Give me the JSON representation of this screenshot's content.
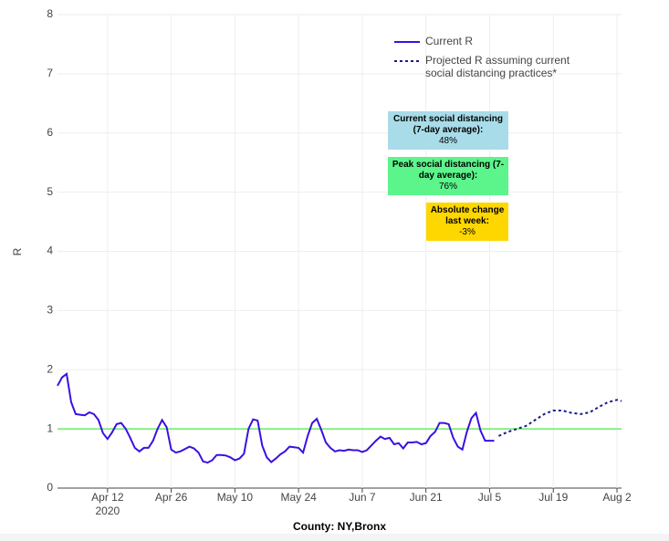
{
  "chart_data": {
    "type": "line",
    "x_title": "County: NY,Bronx",
    "y_title": "R",
    "xlim": [
      "2020-04-01",
      "2020-08-03"
    ],
    "xticks": [
      {
        "value": "2020-04-12",
        "label": "Apr 12"
      },
      {
        "value": "2020-04-26",
        "label": "Apr 26"
      },
      {
        "value": "2020-05-10",
        "label": "May 10"
      },
      {
        "value": "2020-05-24",
        "label": "May 24"
      },
      {
        "value": "2020-06-07",
        "label": "Jun 7"
      },
      {
        "value": "2020-06-21",
        "label": "Jun 21"
      },
      {
        "value": "2020-07-05",
        "label": "Jul 5"
      },
      {
        "value": "2020-07-19",
        "label": "Jul 19"
      },
      {
        "value": "2020-08-02",
        "label": "Aug 2"
      }
    ],
    "x_year_label": "2020",
    "ylim": [
      0,
      8
    ],
    "yticks": [
      0,
      1,
      2,
      3,
      4,
      5,
      6,
      7,
      8
    ],
    "grid": true,
    "reference_line": {
      "value": 1,
      "color": "#66ee66"
    },
    "legend": "top-right",
    "series": [
      {
        "name": "Current R",
        "color": "#3b10e0",
        "dash": false,
        "x": [
          "2020-04-01",
          "2020-04-02",
          "2020-04-03",
          "2020-04-04",
          "2020-04-05",
          "2020-04-06",
          "2020-04-07",
          "2020-04-08",
          "2020-04-09",
          "2020-04-10",
          "2020-04-11",
          "2020-04-12",
          "2020-04-13",
          "2020-04-14",
          "2020-04-15",
          "2020-04-16",
          "2020-04-17",
          "2020-04-18",
          "2020-04-19",
          "2020-04-20",
          "2020-04-21",
          "2020-04-22",
          "2020-04-23",
          "2020-04-24",
          "2020-04-25",
          "2020-04-26",
          "2020-04-27",
          "2020-04-28",
          "2020-04-29",
          "2020-04-30",
          "2020-05-01",
          "2020-05-02",
          "2020-05-03",
          "2020-05-04",
          "2020-05-05",
          "2020-05-06",
          "2020-05-07",
          "2020-05-08",
          "2020-05-09",
          "2020-05-10",
          "2020-05-11",
          "2020-05-12",
          "2020-05-13",
          "2020-05-14",
          "2020-05-15",
          "2020-05-16",
          "2020-05-17",
          "2020-05-18",
          "2020-05-19",
          "2020-05-20",
          "2020-05-21",
          "2020-05-22",
          "2020-05-23",
          "2020-05-24",
          "2020-05-25",
          "2020-05-26",
          "2020-05-27",
          "2020-05-28",
          "2020-05-29",
          "2020-05-30",
          "2020-05-31",
          "2020-06-01",
          "2020-06-02",
          "2020-06-03",
          "2020-06-04",
          "2020-06-05",
          "2020-06-06",
          "2020-06-07",
          "2020-06-08",
          "2020-06-09",
          "2020-06-10",
          "2020-06-11",
          "2020-06-12",
          "2020-06-13",
          "2020-06-14",
          "2020-06-15",
          "2020-06-16",
          "2020-06-17",
          "2020-06-18",
          "2020-06-19",
          "2020-06-20",
          "2020-06-21",
          "2020-06-22",
          "2020-06-23",
          "2020-06-24",
          "2020-06-25",
          "2020-06-26",
          "2020-06-27",
          "2020-06-28",
          "2020-06-29",
          "2020-06-30",
          "2020-07-01",
          "2020-07-02",
          "2020-07-03",
          "2020-07-04",
          "2020-07-05",
          "2020-07-06"
        ],
        "values": [
          1.73,
          1.87,
          1.93,
          1.45,
          1.25,
          1.24,
          1.23,
          1.28,
          1.25,
          1.15,
          0.93,
          0.83,
          0.94,
          1.08,
          1.1,
          1.0,
          0.85,
          0.68,
          0.62,
          0.68,
          0.68,
          0.8,
          1.0,
          1.15,
          1.03,
          0.65,
          0.6,
          0.62,
          0.66,
          0.7,
          0.67,
          0.6,
          0.45,
          0.43,
          0.47,
          0.56,
          0.56,
          0.55,
          0.52,
          0.47,
          0.5,
          0.58,
          1.0,
          1.16,
          1.14,
          0.72,
          0.52,
          0.44,
          0.5,
          0.57,
          0.62,
          0.7,
          0.69,
          0.68,
          0.6,
          0.88,
          1.1,
          1.17,
          0.98,
          0.77,
          0.68,
          0.62,
          0.64,
          0.63,
          0.65,
          0.64,
          0.64,
          0.61,
          0.64,
          0.72,
          0.8,
          0.87,
          0.83,
          0.85,
          0.74,
          0.76,
          0.67,
          0.77,
          0.77,
          0.78,
          0.74,
          0.76,
          0.88,
          0.95,
          1.1,
          1.1,
          1.08,
          0.85,
          0.7,
          0.65,
          0.95,
          1.18,
          1.27,
          0.97,
          0.8,
          0.8,
          0.8
        ]
      },
      {
        "name": "Projected R assuming current social distancing practices*",
        "color": "#1a1a8c",
        "dash": true,
        "x": [
          "2020-07-07",
          "2020-07-09",
          "2020-07-11",
          "2020-07-13",
          "2020-07-15",
          "2020-07-17",
          "2020-07-19",
          "2020-07-21",
          "2020-07-23",
          "2020-07-25",
          "2020-07-27",
          "2020-07-29",
          "2020-07-31",
          "2020-08-02",
          "2020-08-03"
        ],
        "values": [
          0.88,
          0.95,
          1.0,
          1.05,
          1.15,
          1.25,
          1.31,
          1.31,
          1.27,
          1.25,
          1.28,
          1.37,
          1.45,
          1.49,
          1.47
        ]
      }
    ],
    "annotations": [
      {
        "title": "Current social distancing (7-day average):",
        "value": 48,
        "value_label": "48%",
        "color": "#a8dce8"
      },
      {
        "title": "Peak social distancing (7-day average):",
        "value": 76,
        "value_label": "76%",
        "color": "#5cf58c"
      },
      {
        "title": "Absolute change last week:",
        "value": -3,
        "value_label": "-3%",
        "color": "#ffd700"
      }
    ]
  }
}
